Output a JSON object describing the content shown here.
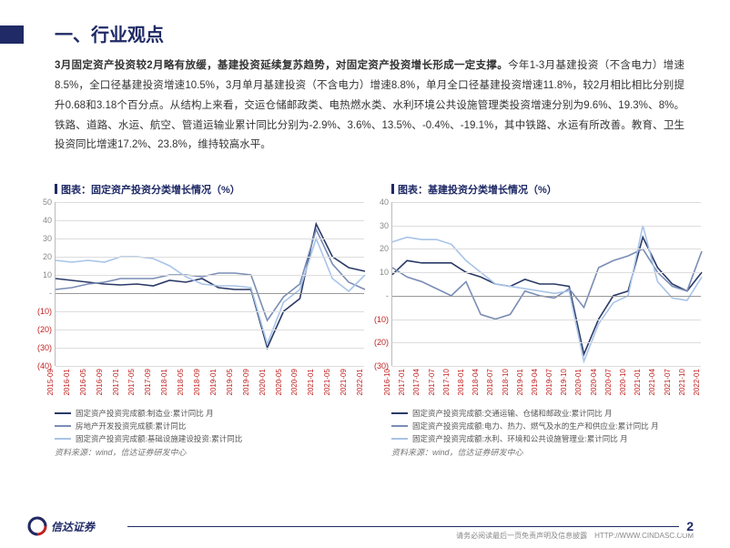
{
  "header": {
    "title": "一、行业观点"
  },
  "body": {
    "bold_lead": "3月固定资产投资较2月略有放缓，基建投资延续复苏趋势，对固定资产投资增长形成一定支撑。",
    "rest": "今年1-3月基建投资（不含电力）增速8.5%，全口径基建投资增速10.5%，3月单月基建投资（不含电力）增速8.8%，单月全口径基建投资增速11.8%，较2月相比相比分别提升0.68和3.18个百分点。从结构上来看，交运仓储邮政类、电热燃水类、水利环境公共设施管理类投资增速分别为9.6%、19.3%、8%。铁路、道路、水运、航空、管道运输业累计同比分别为-2.9%、3.6%、13.5%、-0.4%、-19.1%，其中铁路、水运有所改善。教育、卫生投资同比增速17.2%、23.8%，维持较高水平。"
  },
  "chart_left": {
    "title": "图表：固定资产投资分类增长情况（%）",
    "type": "line",
    "ylim": [
      -40,
      50
    ],
    "yticks": [
      50,
      40,
      30,
      20,
      10,
      0,
      -10,
      -20,
      -30,
      -40
    ],
    "ytick_labels": [
      "50",
      "40",
      "30",
      "20",
      "10",
      "-",
      "(10)",
      "(20)",
      "(30)",
      "(40)"
    ],
    "xticks": [
      "2015-09",
      "2016-01",
      "2016-05",
      "2016-09",
      "2017-01",
      "2017-05",
      "2017-09",
      "2018-01",
      "2018-05",
      "2018-09",
      "2019-01",
      "2019-05",
      "2019-09",
      "2020-01",
      "2020-05",
      "2020-09",
      "2021-01",
      "2021-05",
      "2021-09",
      "2022-01"
    ],
    "series": [
      {
        "name": "固定资产投资完成额:制造业:累计同比 月",
        "color": "#2b3a67",
        "width": 1.6,
        "values": [
          8,
          7,
          6,
          5,
          4.5,
          5,
          4,
          7,
          6,
          8,
          3,
          2,
          2,
          -30,
          -10,
          -3,
          38,
          20,
          14,
          12
        ]
      },
      {
        "name": "房地产开发投资完成额:累计同比",
        "color": "#7a8db5",
        "width": 1.6,
        "values": [
          2,
          3,
          5,
          6,
          8,
          8,
          8,
          10,
          10,
          9,
          11,
          11,
          10,
          -15,
          -2,
          5,
          35,
          16,
          6,
          2
        ]
      },
      {
        "name": "固定资产投资完成额:基础设施建设投资:累计同比",
        "color": "#a8c4e8",
        "width": 1.6,
        "values": [
          18,
          17,
          18,
          17,
          20,
          20,
          19,
          15,
          9,
          5,
          4,
          4,
          3,
          -28,
          -5,
          2,
          30,
          8,
          1,
          10
        ]
      }
    ],
    "grid_color": "#dddddd",
    "source": "资料来源：wind，信达证券研发中心"
  },
  "chart_right": {
    "title": "图表：基建投资分类增长情况（%）",
    "type": "line",
    "ylim": [
      -30,
      40
    ],
    "yticks": [
      40,
      30,
      20,
      10,
      0,
      -10,
      -20,
      -30
    ],
    "ytick_labels": [
      "40",
      "30",
      "20",
      "10",
      "-",
      "(10)",
      "(20)",
      "(30)"
    ],
    "xticks": [
      "2016-10",
      "2017-01",
      "2017-04",
      "2017-07",
      "2017-10",
      "2018-01",
      "2018-04",
      "2018-07",
      "2018-10",
      "2019-01",
      "2019-04",
      "2019-07",
      "2019-10",
      "2020-01",
      "2020-04",
      "2020-07",
      "2020-10",
      "2021-01",
      "2021-04",
      "2021-07",
      "2021-10",
      "2022-01"
    ],
    "series": [
      {
        "name": "固定资产投资完成额:交通运输、仓储和邮政业:累计同比 月",
        "color": "#2b3a67",
        "width": 1.6,
        "values": [
          9,
          15,
          14,
          14,
          14,
          10,
          8,
          5,
          4,
          7,
          5,
          5,
          4,
          -25,
          -10,
          0,
          2,
          25,
          12,
          5,
          2,
          10
        ]
      },
      {
        "name": "固定资产投资完成额:电力、热力、燃气及水的生产和供应业:累计同比 月",
        "color": "#7a8db5",
        "width": 1.6,
        "values": [
          12,
          8,
          6,
          3,
          0,
          6,
          -8,
          -10,
          -8,
          2,
          0,
          -1,
          3,
          -5,
          12,
          15,
          17,
          20,
          10,
          4,
          2,
          19
        ]
      },
      {
        "name": "固定资产投资完成额:水利、环境和公共设施管理业:累计同比 月",
        "color": "#a8c4e8",
        "width": 1.6,
        "values": [
          23,
          25,
          24,
          24,
          22,
          15,
          10,
          5,
          4,
          3,
          2,
          1,
          2,
          -28,
          -12,
          -3,
          0,
          30,
          6,
          -1,
          -2,
          8
        ]
      }
    ],
    "grid_color": "#dddddd",
    "source": "资料来源：wind，信达证券研发中心"
  },
  "footer": {
    "logo_text": "信达证券",
    "page_number": "2",
    "disclaimer": "请务必阅读最后一页免责声明及信息披露　HTTP://WWW.CINDASC.COM"
  }
}
